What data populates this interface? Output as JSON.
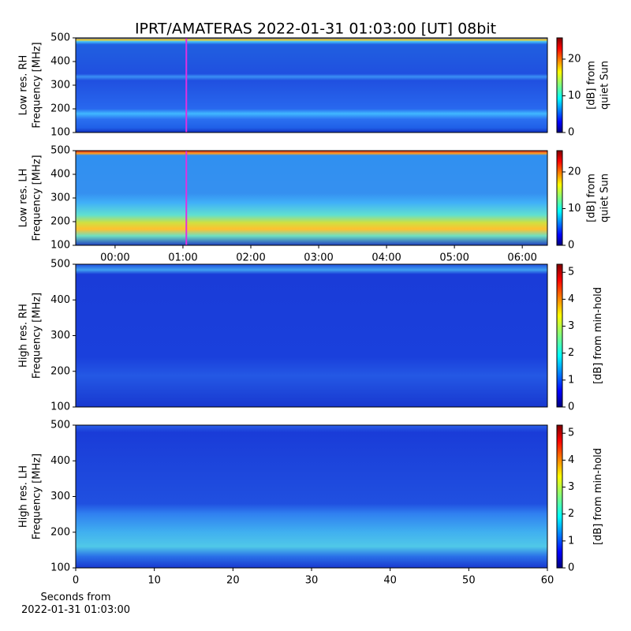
{
  "title": "IPRT/AMATERAS 2022-01-31 01:03:00 [UT]   08bit",
  "chart_data": [
    {
      "type": "heatmap",
      "ylabel": [
        "Low res. RH",
        "Frequency [MHz]"
      ],
      "xlim": [
        -0.58,
        6.37
      ],
      "marker_x": 1.05,
      "ylim": [
        100,
        500
      ],
      "yticks": [
        100,
        200,
        300,
        400,
        500
      ],
      "colorbar": {
        "label": [
          "[dB] from",
          "quiet Sun"
        ],
        "lim": [
          0,
          25.8
        ],
        "ticks": [
          0,
          10,
          20
        ]
      }
    },
    {
      "type": "heatmap",
      "ylabel": [
        "Low res. LH",
        "Frequency [MHz]"
      ],
      "xlim": [
        -0.58,
        6.37
      ],
      "marker_x": 1.05,
      "xticks": [
        {
          "value": 0,
          "label": "00:00"
        },
        {
          "value": 1,
          "label": "01:00"
        },
        {
          "value": 2,
          "label": "02:00"
        },
        {
          "value": 3,
          "label": "03:00"
        },
        {
          "value": 4,
          "label": "04:00"
        },
        {
          "value": 5,
          "label": "05:00"
        },
        {
          "value": 6,
          "label": "06:00"
        }
      ],
      "ylim": [
        100,
        500
      ],
      "yticks": [
        100,
        200,
        300,
        400,
        500
      ],
      "colorbar": {
        "label": [
          "[dB] from",
          "quiet Sun"
        ],
        "lim": [
          0,
          25.8
        ],
        "ticks": [
          0,
          10,
          20
        ]
      }
    },
    {
      "type": "heatmap",
      "ylabel": [
        "High res. RH",
        "Frequency [MHz]"
      ],
      "xlim": [
        0,
        60
      ],
      "ylim": [
        100,
        500
      ],
      "yticks": [
        100,
        200,
        300,
        400,
        500
      ],
      "colorbar": {
        "label": [
          "[dB] from min-hold"
        ],
        "lim": [
          0,
          5.3
        ],
        "ticks": [
          0,
          1,
          2,
          3,
          4,
          5
        ]
      }
    },
    {
      "type": "heatmap",
      "ylabel": [
        "High res. LH",
        "Frequency [MHz]"
      ],
      "xlim": [
        0,
        60
      ],
      "xticks": [
        0,
        10,
        20,
        30,
        40,
        50,
        60
      ],
      "xlabel": [
        "Seconds from",
        "2022-01-31 01:03:00"
      ],
      "ylim": [
        100,
        500
      ],
      "yticks": [
        100,
        200,
        300,
        400,
        500
      ],
      "colorbar": {
        "label": [
          "[dB] from min-hold"
        ],
        "lim": [
          0,
          5.3
        ],
        "ticks": [
          0,
          1,
          2,
          3,
          4,
          5
        ]
      }
    }
  ]
}
